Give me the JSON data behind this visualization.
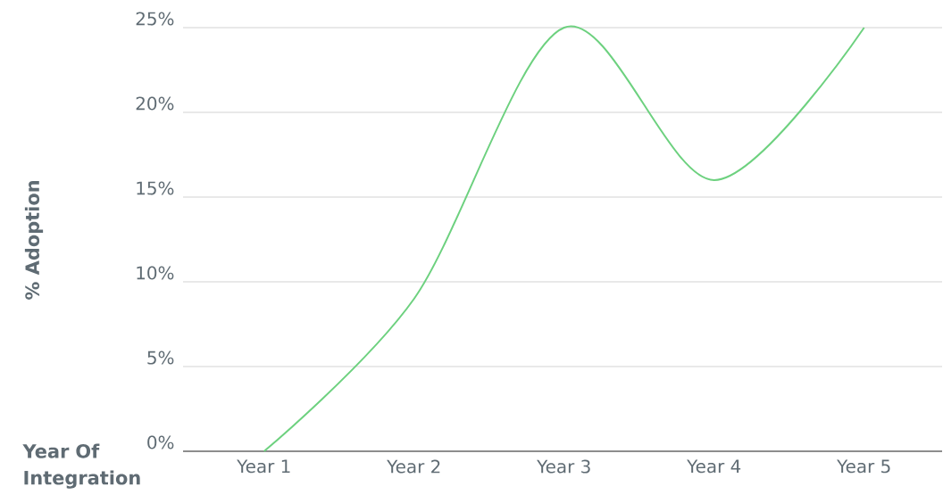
{
  "chart_data": {
    "type": "line",
    "xlabel": "Year Of Integration",
    "ylabel": "% Adoption",
    "categories": [
      "Year 1",
      "Year 2",
      "Year 3",
      "Year 4",
      "Year 5"
    ],
    "series": [
      {
        "color": "#6dd17f",
        "values": [
          0,
          9,
          25,
          16,
          25
        ]
      }
    ],
    "ylim": [
      0,
      25
    ],
    "yticks": [
      {
        "value": 0,
        "label": "0%"
      },
      {
        "value": 5,
        "label": "5%"
      },
      {
        "value": 10,
        "label": "10%"
      },
      {
        "value": 15,
        "label": "15%"
      },
      {
        "value": 20,
        "label": "20%"
      },
      {
        "value": 25,
        "label": "25%"
      }
    ],
    "grid": "y",
    "marker": "none",
    "line_style": "solid"
  }
}
